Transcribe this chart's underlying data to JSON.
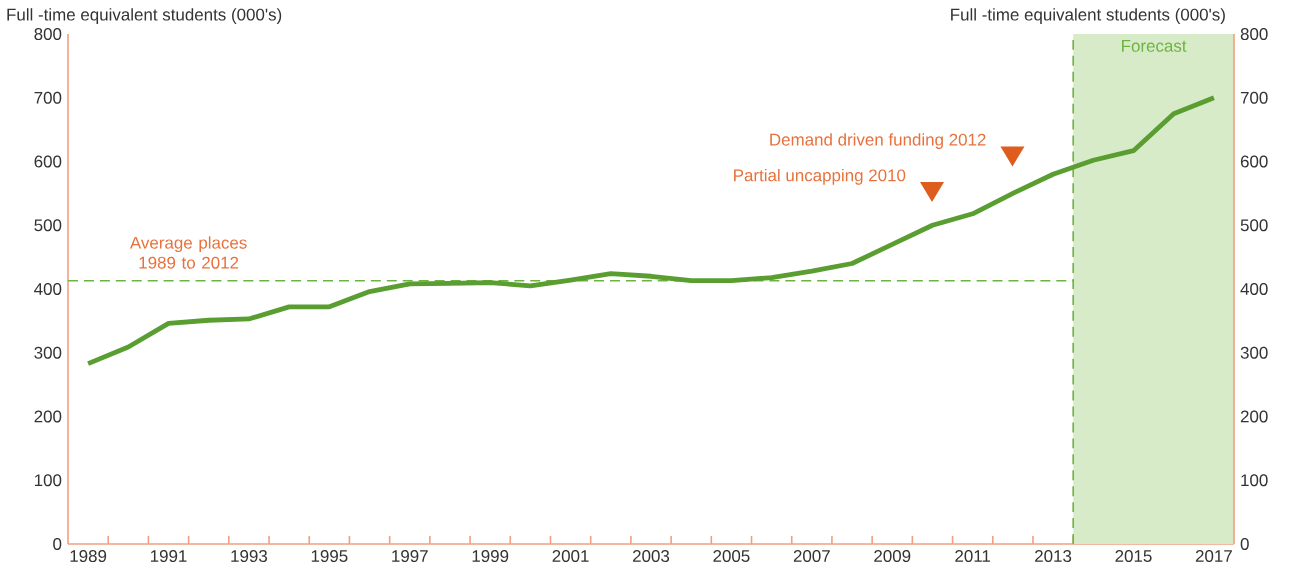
{
  "chart_data": {
    "type": "line",
    "ylabel": "Full -time equivalent students (000's)",
    "y2label": "Full -time equivalent students (000's)",
    "x": [
      1989,
      1990,
      1991,
      1992,
      1993,
      1994,
      1995,
      1996,
      1997,
      1998,
      1999,
      2000,
      2001,
      2002,
      2003,
      2004,
      2005,
      2006,
      2007,
      2008,
      2009,
      2010,
      2011,
      2012,
      2013,
      2014,
      2015,
      2016,
      2017
    ],
    "series": [
      {
        "color": "#5a9e32",
        "values": [
          283,
          309,
          346,
          351,
          353,
          372,
          372,
          396,
          408,
          409,
          410,
          405,
          414,
          424,
          420,
          413,
          413,
          418,
          428,
          440,
          470,
          500,
          518,
          550,
          580,
          602,
          617,
          675,
          700
        ]
      }
    ],
    "xlim": [
      1988.5,
      2017.5
    ],
    "ylim": [
      0,
      800
    ],
    "y2lim": [
      0,
      800
    ],
    "xticks": [
      1989,
      {
        "value": 1989.5,
        "label": null
      },
      {
        "value": 1990.5,
        "label": null
      },
      1991,
      {
        "value": 1991.5,
        "label": null
      },
      {
        "value": 1992.5,
        "label": null
      },
      1993,
      {
        "value": 1993.5,
        "label": null
      },
      {
        "value": 1994.5,
        "label": null
      },
      1995,
      {
        "value": 1995.5,
        "label": null
      },
      {
        "value": 1996.5,
        "label": null
      },
      1997,
      {
        "value": 1997.5,
        "label": null
      },
      {
        "value": 1998.5,
        "label": null
      },
      1999,
      {
        "value": 1999.5,
        "label": null
      },
      {
        "value": 2000.5,
        "label": null
      },
      2001,
      {
        "value": 2001.5,
        "label": null
      },
      {
        "value": 2002.5,
        "label": null
      },
      2003,
      {
        "value": 2003.5,
        "label": null
      },
      {
        "value": 2004.5,
        "label": null
      },
      2005,
      {
        "value": 2005.5,
        "label": null
      },
      {
        "value": 2006.5,
        "label": null
      },
      2007,
      {
        "value": 2007.5,
        "label": null
      },
      {
        "value": 2008.5,
        "label": null
      },
      2009,
      {
        "value": 2009.5,
        "label": null
      },
      {
        "value": 2010.5,
        "label": null
      },
      2011,
      {
        "value": 2011.5,
        "label": null
      },
      {
        "value": 2012.5,
        "label": null
      },
      2013,
      {
        "value": 2013.5,
        "label": null
      },
      {
        "value": 2014.5,
        "label": null
      },
      2015,
      {
        "value": 2015.5,
        "label": null
      },
      {
        "value": 2016.5,
        "label": null
      },
      2017
    ],
    "yticks": [
      0,
      100,
      200,
      300,
      400,
      500,
      600,
      700,
      800
    ],
    "y2ticks": [
      0,
      100,
      200,
      300,
      400,
      500,
      600,
      700,
      800
    ],
    "ref_lines": [
      {
        "axis": "y",
        "value": 413,
        "label": "Average places 1989 to 2012",
        "color": "#6cb33f",
        "line_style": "dashed"
      },
      {
        "axis": "x",
        "value": 2013.5,
        "label": null,
        "color": "#6cb33f",
        "line_style": "dashed"
      }
    ],
    "bands": [
      {
        "axis": "x",
        "from": 2013.5,
        "to": 2017.5,
        "label": "Forecast",
        "color": "#d7ebc8"
      }
    ],
    "annotations": [
      "Partial uncapping 2010",
      "Demand driven funding 2012"
    ]
  }
}
